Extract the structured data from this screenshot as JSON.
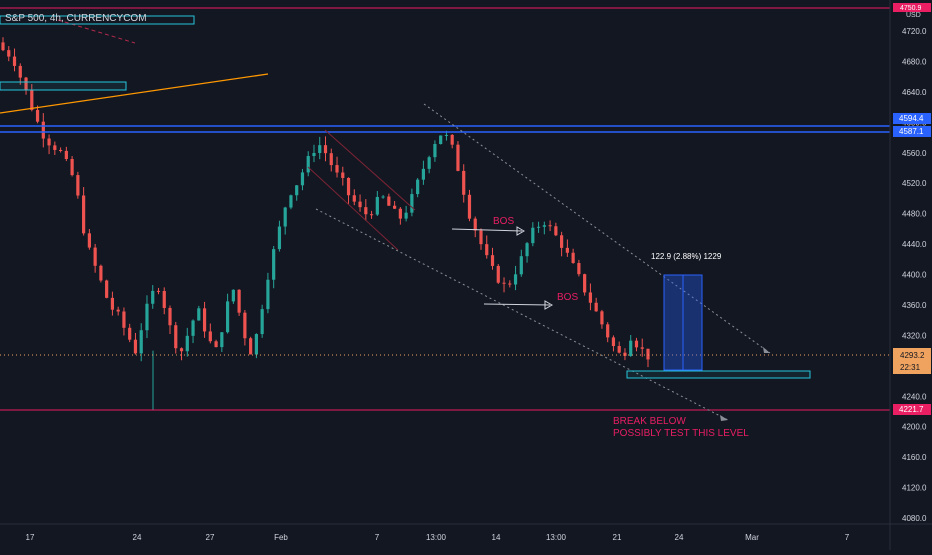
{
  "header": {
    "symbol_title": "S&P 500, 4h, CURRENCYCOM"
  },
  "axis": {
    "y_ticks": [
      4080,
      4120,
      4160,
      4200,
      4240,
      4280,
      4320,
      4360,
      4400,
      4440,
      4480,
      4520,
      4560,
      4600,
      4640,
      4680,
      4720
    ],
    "y_tick_labels": [
      "4080.0",
      "4120.0",
      "4160.0",
      "4200.0",
      "4240.0",
      "4280.0",
      "4320.0",
      "4360.0",
      "4400.0",
      "4440.0",
      "4480.0",
      "4520.0",
      "4560.0",
      "4600.0",
      "4640.0",
      "4680.0",
      "4720.0"
    ],
    "currency": "USD",
    "x_labels": [
      "17",
      "24",
      "27",
      "Feb",
      "7",
      "13:00",
      "14",
      "13:00",
      "21",
      "24",
      "Mar",
      "7"
    ]
  },
  "price_badges": {
    "top": "4750.9",
    "upper_zone_1": "4594.4",
    "upper_zone_2": "4587.1",
    "current_price": "4293.2",
    "countdown": "22:31",
    "support": "4221.7"
  },
  "annotations": {
    "bos_1": "BOS",
    "bos_2": "BOS",
    "measure": "122.9 (2.88%) 1229",
    "note_line1": "BREAK BELOW",
    "note_line2": "POSSIBLY TEST THIS LEVEL"
  },
  "colors": {
    "background": "#131722",
    "up_candle": "#26a69a",
    "down_candle": "#ef5350",
    "zone_blue": "#2962ff",
    "box_cyan": "#26c6da",
    "trend_orange": "#ff9800",
    "level_magenta": "#e91e63",
    "text": "#d1d4dc"
  },
  "chart_data": {
    "type": "candlestick",
    "title": "S&P 500, 4h, CURRENCYCOM",
    "ylim": [
      4060,
      4760
    ],
    "close_path": [
      4695,
      4690,
      4680,
      4660,
      4640,
      4620,
      4600,
      4585,
      4575,
      4568,
      4560,
      4545,
      4530,
      4500,
      4460,
      4430,
      4410,
      4390,
      4370,
      4355,
      4345,
      4330,
      4315,
      4300,
      4330,
      4355,
      4375,
      4385,
      4360,
      4330,
      4310,
      4300,
      4320,
      4340,
      4350,
      4330,
      4310,
      4300,
      4330,
      4360,
      4380,
      4350,
      4320,
      4300,
      4320,
      4360,
      4400,
      4430,
      4460,
      4490,
      4510,
      4520,
      4535,
      4550,
      4565,
      4570,
      4560,
      4545,
      4530,
      4520,
      4505,
      4495,
      4485,
      4480,
      4485,
      4495,
      4500,
      4490,
      4480,
      4475,
      4485,
      4500,
      4520,
      4540,
      4560,
      4575,
      4585,
      4580,
      4565,
      4540,
      4510,
      4480,
      4460,
      4440,
      4420,
      4405,
      4395,
      4385,
      4390,
      4405,
      4420,
      4440,
      4455,
      4465,
      4470,
      4460,
      4450,
      4440,
      4425,
      4410,
      4395,
      4380,
      4365,
      4350,
      4335,
      4320,
      4305,
      4295,
      4300,
      4320,
      4310,
      4300,
      4293
    ],
    "up_color": "#26a69a",
    "down_color": "#ef5350",
    "levels": [
      4750.9,
      4594.4,
      4587.1,
      4293.2,
      4221.7
    ]
  }
}
